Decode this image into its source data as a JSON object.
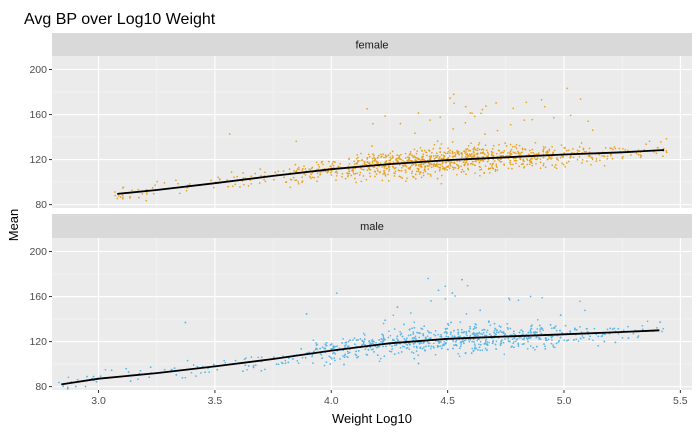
{
  "chart_data": {
    "type": "scatter",
    "title": "Avg BP over Log10 Weight",
    "xlabel": "Weight Log10",
    "ylabel": "Mean",
    "xlim": [
      2.8,
      5.55
    ],
    "xticks": [
      3.0,
      3.5,
      4.0,
      4.5,
      5.0,
      5.5
    ],
    "xtick_labels": [
      "3.0",
      "3.5",
      "4.0",
      "4.5",
      "5.0",
      "5.5"
    ],
    "ylim": [
      77,
      212
    ],
    "yticks": [
      80,
      120,
      160,
      200
    ],
    "ytick_labels": [
      "80",
      "120",
      "160",
      "200"
    ],
    "grid": true,
    "legend": "none",
    "panels": [
      {
        "label": "female",
        "point_color": "#E6A11E",
        "x_range": [
          3.07,
          5.45
        ],
        "n_points": 1150,
        "smooth": {
          "x": [
            3.08,
            3.25,
            3.5,
            3.75,
            4.0,
            4.25,
            4.5,
            4.75,
            5.0,
            5.25,
            5.43
          ],
          "y": [
            89.5,
            93,
            99,
            105.5,
            111.5,
            116,
            119.5,
            122,
            124.5,
            126.5,
            128.5
          ]
        }
      },
      {
        "label": "male",
        "point_color": "#5BB6E6",
        "x_range": [
          2.83,
          5.45
        ],
        "n_points": 1200,
        "smooth": {
          "x": [
            2.84,
            3.0,
            3.25,
            3.5,
            3.75,
            4.0,
            4.25,
            4.5,
            4.75,
            5.0,
            5.25,
            5.41
          ],
          "y": [
            82,
            87,
            92,
            98,
            104.5,
            112,
            118.5,
            122.5,
            124.5,
            126.5,
            128.5,
            130
          ]
        }
      }
    ]
  }
}
